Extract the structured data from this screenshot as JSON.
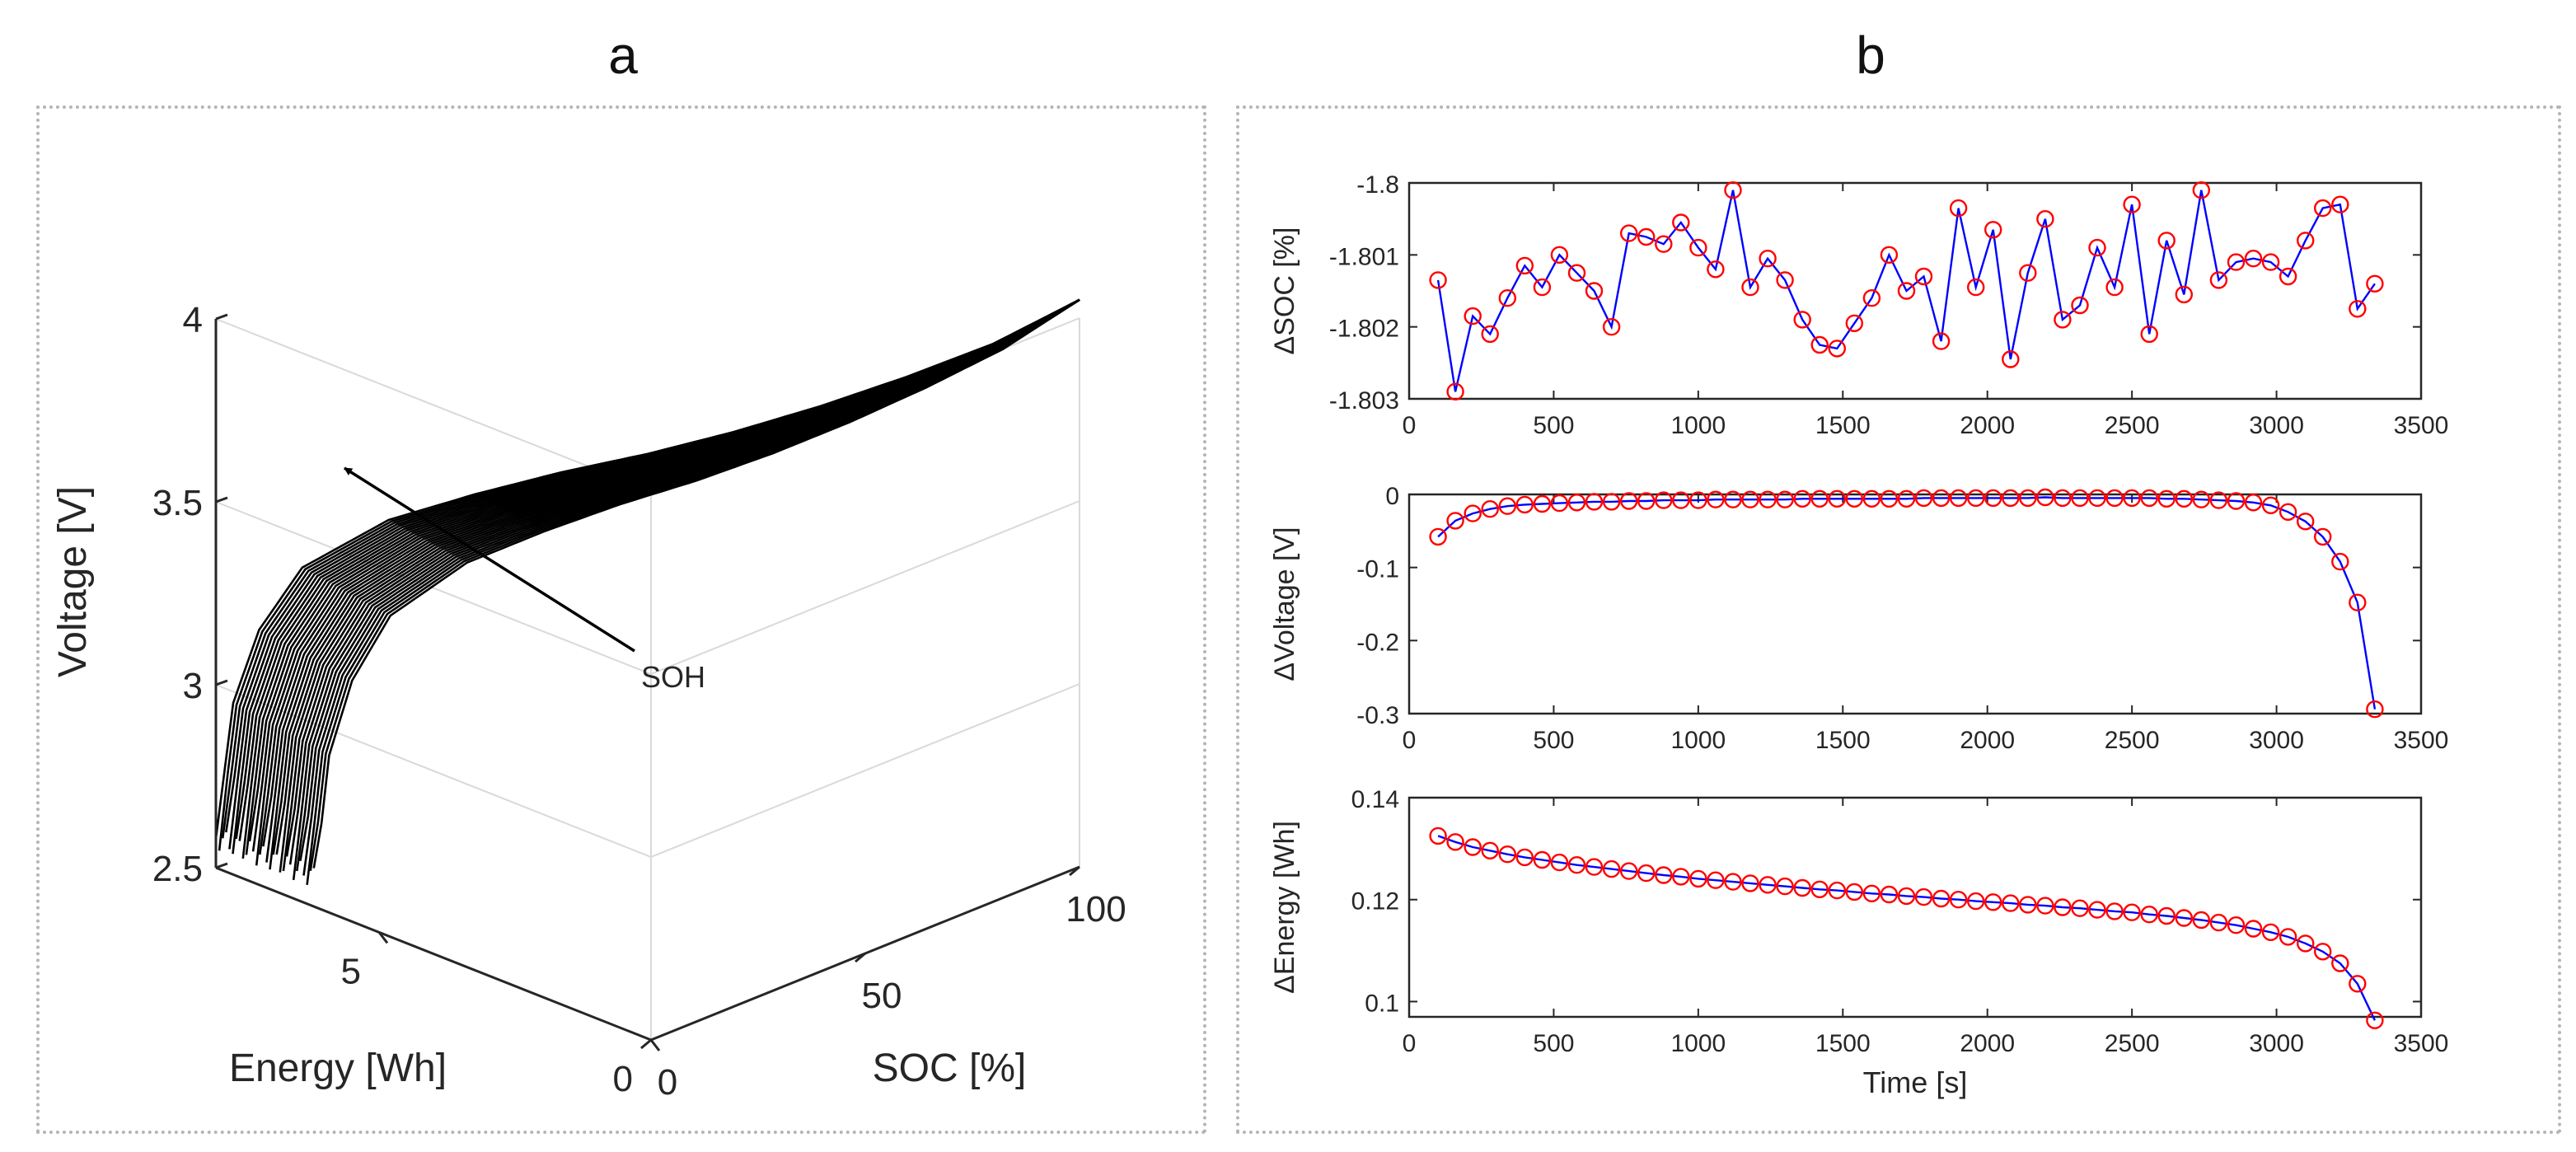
{
  "figure": {
    "panel_a_label": "a",
    "panel_b_label": "b",
    "colors": {
      "curve": "#000000",
      "grid": "#d9d9d9",
      "axis": "#262626",
      "series_line": "#0000ff",
      "series_marker": "#ff0000"
    }
  },
  "chart_data": [
    {
      "id": "panel-a",
      "type": "line",
      "projection": "3d",
      "title": "",
      "xlabel": "SOC [%]",
      "ylabel": "Energy [Wh]",
      "zlabel": "Voltage [V]",
      "x_ticks": [
        "0",
        "50",
        "100"
      ],
      "y_ticks": [
        "0",
        "5"
      ],
      "z_ticks": [
        "2.5",
        "3",
        "3.5",
        "4"
      ],
      "xlim": [
        0,
        100
      ],
      "ylim": [
        0,
        8
      ],
      "zlim": [
        2.5,
        4
      ],
      "annotation": "SOH",
      "annotation_arrow": "points toward higher state of health",
      "curve_count": 30,
      "voltage_profile": {
        "soc": [
          0,
          2,
          5,
          10,
          20,
          30,
          40,
          50,
          60,
          70,
          80,
          90,
          100
        ],
        "voltage": [
          2.58,
          2.95,
          3.15,
          3.32,
          3.45,
          3.52,
          3.58,
          3.63,
          3.69,
          3.76,
          3.84,
          3.93,
          4.05
        ]
      },
      "energy_range_wh": [
        6.2,
        8.0
      ]
    },
    {
      "id": "panel-b-soc",
      "type": "line",
      "title": "",
      "xlabel": "",
      "ylabel": "ΔSOC [%]",
      "xlim": [
        0,
        3500
      ],
      "ylim": [
        -1.803,
        -1.8
      ],
      "x_ticks": [
        "0",
        "500",
        "1000",
        "1500",
        "2000",
        "2500",
        "3000",
        "3500"
      ],
      "y_ticks": [
        "-1.8",
        "-1.801",
        "-1.802",
        "-1.803"
      ],
      "x": [
        100,
        160,
        220,
        280,
        340,
        400,
        460,
        520,
        580,
        640,
        700,
        760,
        820,
        880,
        940,
        1000,
        1060,
        1120,
        1180,
        1240,
        1300,
        1360,
        1420,
        1480,
        1540,
        1600,
        1660,
        1720,
        1780,
        1840,
        1900,
        1960,
        2020,
        2080,
        2140,
        2200,
        2260,
        2320,
        2380,
        2440,
        2500,
        2560,
        2620,
        2680,
        2740,
        2800,
        2860,
        2920,
        2980,
        3040,
        3100,
        3160,
        3220,
        3280,
        3340
      ],
      "values": [
        -1.80135,
        -1.8029,
        -1.80185,
        -1.8021,
        -1.8016,
        -1.80115,
        -1.80145,
        -1.801,
        -1.80125,
        -1.8015,
        -1.802,
        -1.8007,
        -1.80075,
        -1.80085,
        -1.80055,
        -1.8009,
        -1.8012,
        -1.8001,
        -1.80145,
        -1.80105,
        -1.80135,
        -1.8019,
        -1.80225,
        -1.8023,
        -1.80195,
        -1.8016,
        -1.801,
        -1.8015,
        -1.8013,
        -1.8022,
        -1.80035,
        -1.80145,
        -1.80065,
        -1.80245,
        -1.80125,
        -1.8005,
        -1.8019,
        -1.8017,
        -1.8009,
        -1.80145,
        -1.8003,
        -1.8021,
        -1.8008,
        -1.80155,
        -1.8001,
        -1.80135,
        -1.8011,
        -1.80105,
        -1.8011,
        -1.8013,
        -1.8008,
        -1.80035,
        -1.8003,
        -1.80175,
        -1.8014
      ]
    },
    {
      "id": "panel-b-voltage",
      "type": "line",
      "title": "",
      "xlabel": "",
      "ylabel": "ΔVoltage [V]",
      "xlim": [
        0,
        3500
      ],
      "ylim": [
        -0.3,
        0
      ],
      "x_ticks": [
        "0",
        "500",
        "1000",
        "1500",
        "2000",
        "2500",
        "3000",
        "3500"
      ],
      "y_ticks": [
        "0",
        "-0.1",
        "-0.2",
        "-0.3"
      ],
      "x": [
        100,
        160,
        220,
        280,
        340,
        400,
        460,
        520,
        580,
        640,
        700,
        760,
        820,
        880,
        940,
        1000,
        1060,
        1120,
        1180,
        1240,
        1300,
        1360,
        1420,
        1480,
        1540,
        1600,
        1660,
        1720,
        1780,
        1840,
        1900,
        1960,
        2020,
        2080,
        2140,
        2200,
        2260,
        2320,
        2380,
        2440,
        2500,
        2560,
        2620,
        2680,
        2740,
        2800,
        2860,
        2920,
        2980,
        3040,
        3100,
        3160,
        3220,
        3280,
        3340
      ],
      "values": [
        -0.058,
        -0.036,
        -0.026,
        -0.02,
        -0.016,
        -0.014,
        -0.013,
        -0.012,
        -0.011,
        -0.01,
        -0.01,
        -0.009,
        -0.009,
        -0.008,
        -0.008,
        -0.008,
        -0.007,
        -0.007,
        -0.007,
        -0.007,
        -0.007,
        -0.006,
        -0.006,
        -0.006,
        -0.006,
        -0.006,
        -0.006,
        -0.006,
        -0.005,
        -0.005,
        -0.005,
        -0.005,
        -0.005,
        -0.005,
        -0.005,
        -0.004,
        -0.005,
        -0.005,
        -0.005,
        -0.005,
        -0.005,
        -0.005,
        -0.006,
        -0.006,
        -0.007,
        -0.008,
        -0.009,
        -0.011,
        -0.015,
        -0.024,
        -0.037,
        -0.058,
        -0.092,
        -0.148,
        -0.294
      ]
    },
    {
      "id": "panel-b-energy",
      "type": "line",
      "title": "",
      "xlabel": "Time [s]",
      "ylabel": "ΔEnergy [Wh]",
      "xlim": [
        0,
        3500
      ],
      "ylim": [
        0.097,
        0.14
      ],
      "x_ticks": [
        "0",
        "500",
        "1000",
        "1500",
        "2000",
        "2500",
        "3000",
        "3500"
      ],
      "y_ticks": [
        "0.14",
        "0.12",
        "0.1"
      ],
      "x": [
        100,
        160,
        220,
        280,
        340,
        400,
        460,
        520,
        580,
        640,
        700,
        760,
        820,
        880,
        940,
        1000,
        1060,
        1120,
        1180,
        1240,
        1300,
        1360,
        1420,
        1480,
        1540,
        1600,
        1660,
        1720,
        1780,
        1840,
        1900,
        1960,
        2020,
        2080,
        2140,
        2200,
        2260,
        2320,
        2380,
        2440,
        2500,
        2560,
        2620,
        2680,
        2740,
        2800,
        2860,
        2920,
        2980,
        3040,
        3100,
        3160,
        3220,
        3280,
        3340
      ],
      "values": [
        0.1325,
        0.1313,
        0.1303,
        0.1296,
        0.1289,
        0.1283,
        0.1278,
        0.1273,
        0.1268,
        0.1264,
        0.126,
        0.1256,
        0.1252,
        0.1248,
        0.1245,
        0.1241,
        0.1238,
        0.1235,
        0.1232,
        0.1229,
        0.1226,
        0.1223,
        0.122,
        0.1218,
        0.1215,
        0.1212,
        0.121,
        0.1207,
        0.1205,
        0.1202,
        0.12,
        0.1197,
        0.1195,
        0.1193,
        0.119,
        0.1188,
        0.1185,
        0.1183,
        0.118,
        0.1177,
        0.1175,
        0.1171,
        0.1168,
        0.1164,
        0.116,
        0.1155,
        0.115,
        0.1143,
        0.1136,
        0.1127,
        0.1114,
        0.1098,
        0.1075,
        0.1035,
        0.0963
      ]
    }
  ]
}
